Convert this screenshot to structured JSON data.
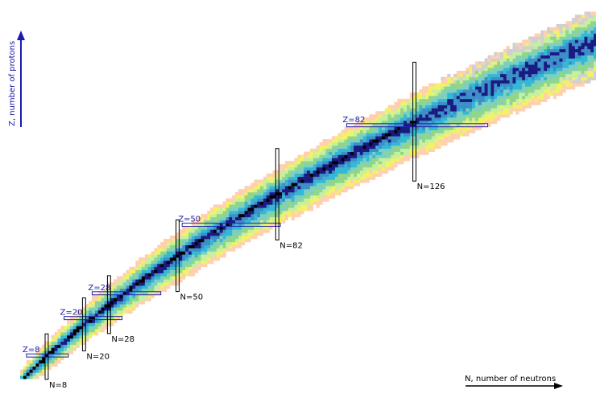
{
  "chart_data": {
    "type": "heatmap",
    "title": "",
    "xlabel": "N, number of neutrons",
    "ylabel": "Z, number of protons",
    "magic_numbers": {
      "proton": [
        {
          "label": "Z=8",
          "z": 8
        },
        {
          "label": "Z=20",
          "z": 20
        },
        {
          "label": "Z=28",
          "z": 28
        },
        {
          "label": "Z=50",
          "z": 50
        },
        {
          "label": "Z=82",
          "z": 82
        }
      ],
      "neutron": [
        {
          "label": "N=8",
          "n": 8
        },
        {
          "label": "N=20",
          "n": 20
        },
        {
          "label": "N=28",
          "n": 28
        },
        {
          "label": "N=50",
          "n": 50
        },
        {
          "label": "N=82",
          "n": 82
        },
        {
          "label": "N=126",
          "n": 126
        }
      ]
    },
    "colors": {
      "stable": "#000000",
      "band_1": "#1a1a80",
      "band_2": "#3d8fc7",
      "band_3": "#33b8d6",
      "band_4": "#7fcfc0",
      "band_5": "#8fd68a",
      "band_6": "#c6f0a0",
      "band_7": "#f2f266",
      "band_8": "#ffd0b0",
      "unknown": "#d0d0d0",
      "axis": "#1a1ab0",
      "magic_box": "#2222aa"
    }
  }
}
